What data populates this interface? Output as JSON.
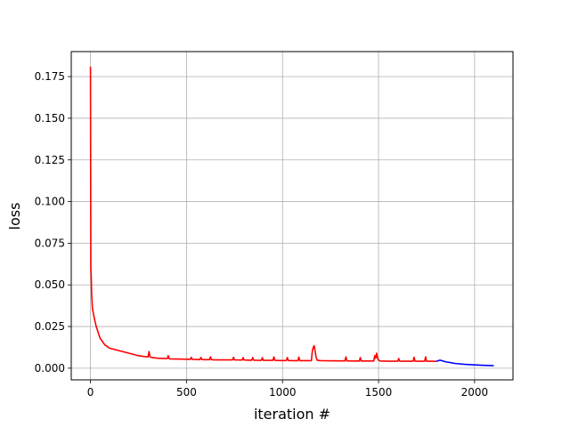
{
  "chart_data": {
    "type": "line",
    "title": "",
    "xlabel": "iteration #",
    "ylabel": "loss",
    "xlim": [
      -100,
      2200
    ],
    "ylim": [
      -0.007,
      0.19
    ],
    "grid": true,
    "x_ticks": [
      0,
      500,
      1000,
      1500,
      2000
    ],
    "x_tick_labels": [
      "0",
      "500",
      "1000",
      "1500",
      "2000"
    ],
    "y_ticks": [
      0.0,
      0.025,
      0.05,
      0.075,
      0.1,
      0.125,
      0.15,
      0.175
    ],
    "y_tick_labels": [
      "0.000",
      "0.025",
      "0.050",
      "0.075",
      "0.100",
      "0.125",
      "0.150",
      "0.175"
    ],
    "series": [
      {
        "color": "#ff0000",
        "x": [
          0,
          1,
          2,
          4,
          6,
          10,
          20,
          30,
          50,
          75,
          100,
          150,
          200,
          250,
          280,
          300,
          305,
          310,
          315,
          320,
          350,
          400,
          405,
          410,
          415,
          450,
          500,
          520,
          525,
          530,
          560,
          570,
          575,
          580,
          600,
          620,
          625,
          630,
          650,
          700,
          740,
          745,
          750,
          780,
          790,
          795,
          800,
          830,
          840,
          845,
          850,
          880,
          890,
          895,
          900,
          940,
          950,
          955,
          960,
          990,
          1020,
          1025,
          1030,
          1060,
          1080,
          1085,
          1090,
          1120,
          1150,
          1155,
          1160,
          1165,
          1170,
          1175,
          1180,
          1200,
          1300,
          1325,
          1330,
          1335,
          1380,
          1400,
          1405,
          1410,
          1450,
          1475,
          1480,
          1485,
          1490,
          1495,
          1500,
          1510,
          1550,
          1600,
          1605,
          1610,
          1650,
          1680,
          1685,
          1690,
          1720,
          1740,
          1745,
          1750,
          1780,
          1800
        ],
        "y": [
          0.181,
          0.12,
          0.06,
          0.055,
          0.045,
          0.036,
          0.03,
          0.025,
          0.018,
          0.014,
          0.012,
          0.0105,
          0.009,
          0.0075,
          0.007,
          0.0068,
          0.01,
          0.0068,
          0.0066,
          0.0064,
          0.006,
          0.0058,
          0.0075,
          0.0057,
          0.0056,
          0.0055,
          0.0054,
          0.0053,
          0.0065,
          0.0053,
          0.0052,
          0.0052,
          0.0065,
          0.0052,
          0.0051,
          0.0051,
          0.0068,
          0.0051,
          0.005,
          0.005,
          0.005,
          0.0065,
          0.005,
          0.0049,
          0.0049,
          0.0064,
          0.0049,
          0.0048,
          0.0048,
          0.0064,
          0.0048,
          0.0047,
          0.0047,
          0.0063,
          0.0047,
          0.0047,
          0.0047,
          0.0068,
          0.0047,
          0.0046,
          0.0046,
          0.0064,
          0.0046,
          0.0045,
          0.0045,
          0.0067,
          0.0045,
          0.0045,
          0.0045,
          0.01,
          0.0125,
          0.0135,
          0.01,
          0.0065,
          0.0048,
          0.0045,
          0.0044,
          0.0044,
          0.0068,
          0.0044,
          0.0043,
          0.0043,
          0.0064,
          0.0043,
          0.0043,
          0.0043,
          0.0075,
          0.006,
          0.009,
          0.006,
          0.0048,
          0.0043,
          0.0042,
          0.0042,
          0.0058,
          0.0042,
          0.0042,
          0.0042,
          0.0066,
          0.0042,
          0.0042,
          0.0042,
          0.0068,
          0.0042,
          0.0042,
          0.0041
        ]
      },
      {
        "color": "#0000ff",
        "x": [
          1800,
          1820,
          1850,
          1900,
          1950,
          2000,
          2050,
          2100
        ],
        "y": [
          0.0041,
          0.0048,
          0.0038,
          0.0028,
          0.0023,
          0.002,
          0.0017,
          0.0015
        ]
      }
    ]
  }
}
